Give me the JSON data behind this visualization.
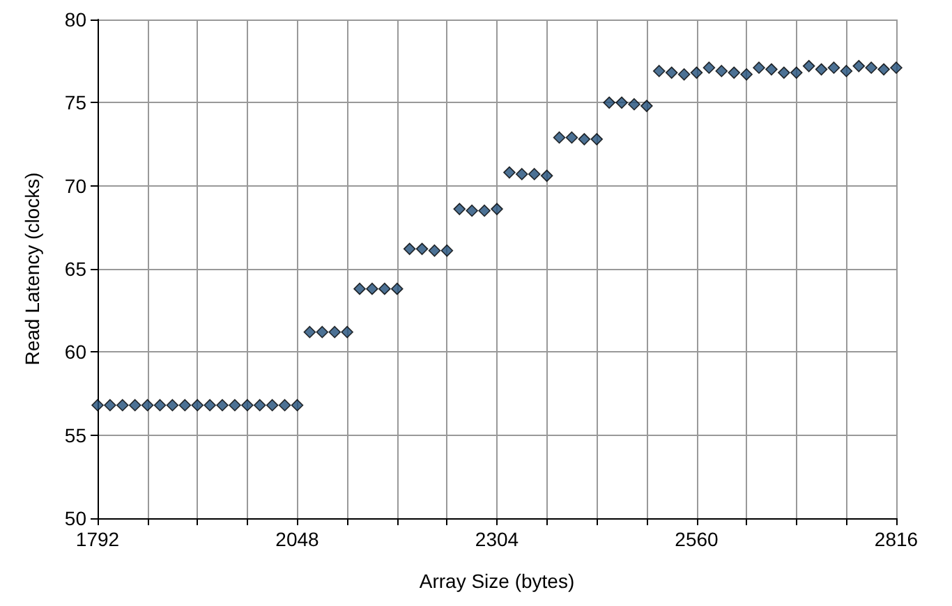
{
  "chart_data": {
    "type": "scatter",
    "xlabel": "Array Size (bytes)",
    "ylabel": "Read Latency (clocks)",
    "x": [
      1792,
      1808,
      1824,
      1840,
      1856,
      1872,
      1888,
      1904,
      1920,
      1936,
      1952,
      1968,
      1984,
      2000,
      2016,
      2032,
      2048,
      2064,
      2080,
      2096,
      2112,
      2128,
      2144,
      2160,
      2176,
      2192,
      2208,
      2224,
      2240,
      2256,
      2272,
      2288,
      2304,
      2320,
      2336,
      2352,
      2368,
      2384,
      2400,
      2416,
      2432,
      2448,
      2464,
      2480,
      2496,
      2512,
      2528,
      2544,
      2560,
      2576,
      2592,
      2608,
      2624,
      2640,
      2656,
      2672,
      2688,
      2704,
      2720,
      2736,
      2752,
      2768,
      2784,
      2800,
      2816
    ],
    "series": [
      {
        "color": "#1f4e79",
        "values": [
          56.8,
          56.8,
          56.8,
          56.8,
          56.8,
          56.8,
          56.8,
          56.8,
          56.8,
          56.8,
          56.8,
          56.8,
          56.8,
          56.8,
          56.8,
          56.8,
          56.8,
          61.2,
          61.2,
          61.2,
          61.2,
          63.8,
          63.8,
          63.8,
          63.8,
          66.2,
          66.2,
          66.1,
          66.1,
          68.6,
          68.5,
          68.5,
          68.6,
          70.8,
          70.7,
          70.7,
          70.6,
          72.9,
          72.9,
          72.8,
          72.8,
          75.0,
          75.0,
          74.9,
          74.8,
          76.9,
          76.8,
          76.7,
          76.8,
          77.1,
          76.9,
          76.8,
          76.7,
          77.1,
          77.0,
          76.8,
          76.8,
          77.2,
          77.0,
          77.1,
          76.9,
          77.2,
          77.1,
          77.0,
          77.1
        ]
      }
    ],
    "xlim": [
      1792,
      2816
    ],
    "xticks": [
      1792,
      {
        "value": 1856,
        "label": null
      },
      {
        "value": 1920,
        "label": null
      },
      {
        "value": 1984,
        "label": null
      },
      2048,
      {
        "value": 2112,
        "label": null
      },
      {
        "value": 2176,
        "label": null
      },
      {
        "value": 2240,
        "label": null
      },
      2304,
      {
        "value": 2368,
        "label": null
      },
      {
        "value": 2432,
        "label": null
      },
      {
        "value": 2496,
        "label": null
      },
      2560,
      {
        "value": 2624,
        "label": null
      },
      {
        "value": 2688,
        "label": null
      },
      {
        "value": 2752,
        "label": null
      },
      2816
    ],
    "ylim": [
      50,
      80
    ],
    "yticks": [
      50,
      55,
      60,
      65,
      70,
      75,
      80
    ],
    "grid": true,
    "marker": "diamond"
  }
}
